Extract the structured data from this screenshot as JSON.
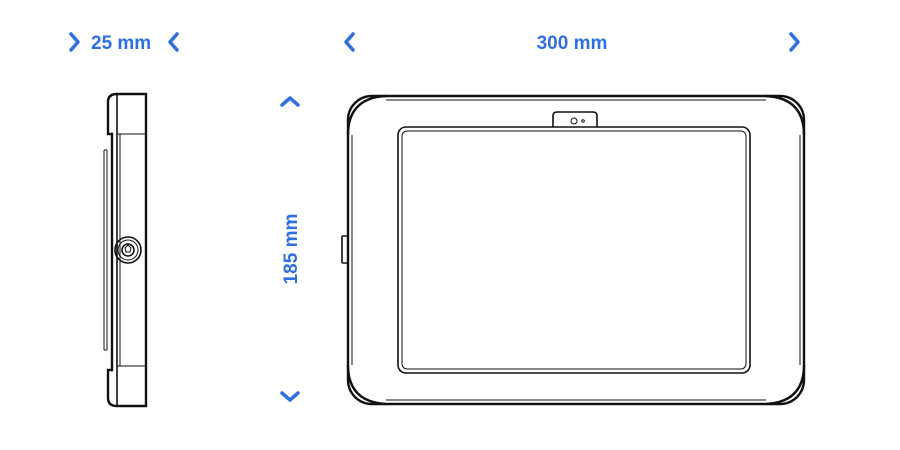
{
  "dimensions": {
    "depth": "25 mm",
    "width": "300 mm",
    "height": "185 mm"
  },
  "colors": {
    "accent": "#2f6fe0",
    "outline": "#111111"
  }
}
